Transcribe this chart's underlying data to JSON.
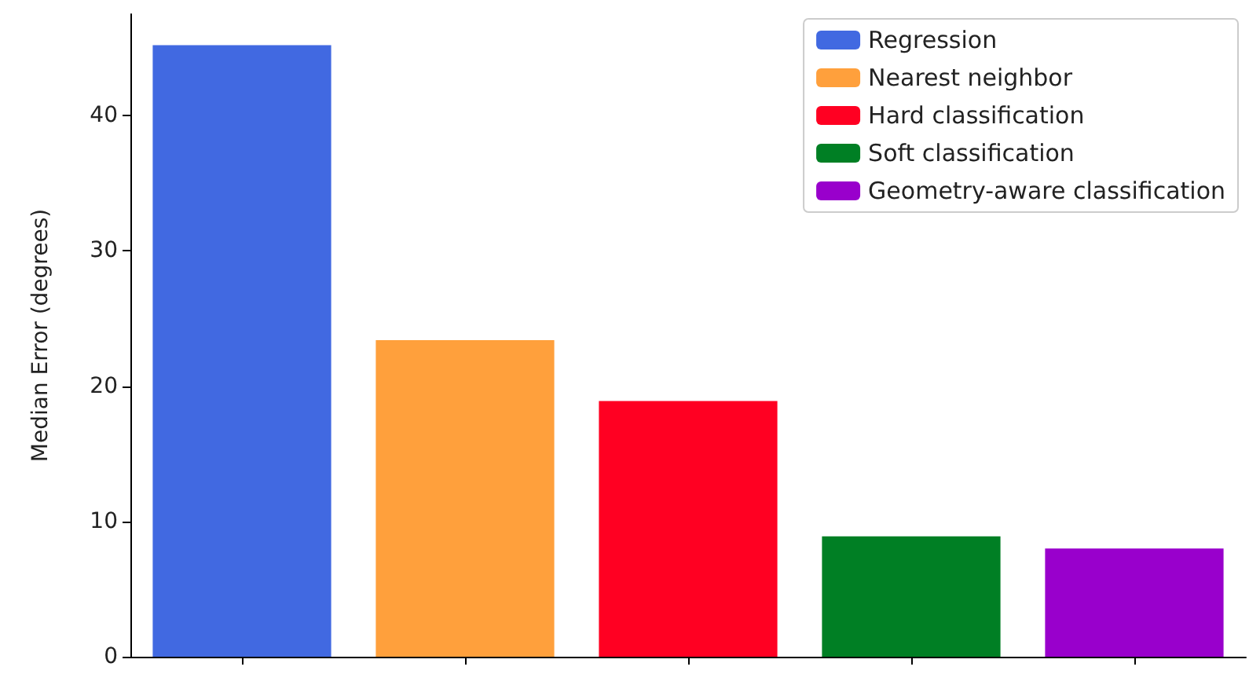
{
  "chart_data": {
    "type": "bar",
    "ylabel": "Median Error (degrees)",
    "categories": [
      null,
      null,
      null,
      null,
      null
    ],
    "series": [
      {
        "name": "Regression",
        "color": "#4169e1",
        "values": [
          45.2,
          null,
          null,
          null,
          null
        ]
      },
      {
        "name": "Nearest neighbor",
        "color": "#ffa03c",
        "values": [
          null,
          23.4,
          null,
          null,
          null
        ]
      },
      {
        "name": "Hard classification",
        "color": "#ff0022",
        "values": [
          null,
          null,
          18.9,
          null,
          null
        ]
      },
      {
        "name": "Soft classification",
        "color": "#007f24",
        "values": [
          null,
          null,
          null,
          8.9,
          null
        ]
      },
      {
        "name": "Geometry-aware classification",
        "color": "#9900cc",
        "values": [
          null,
          null,
          null,
          null,
          8.0
        ]
      }
    ],
    "ylim": [
      0,
      47.5
    ],
    "yticks": [
      0,
      10,
      20,
      30,
      40
    ],
    "tick_labels": "y",
    "grid": false,
    "legend": "top right"
  }
}
